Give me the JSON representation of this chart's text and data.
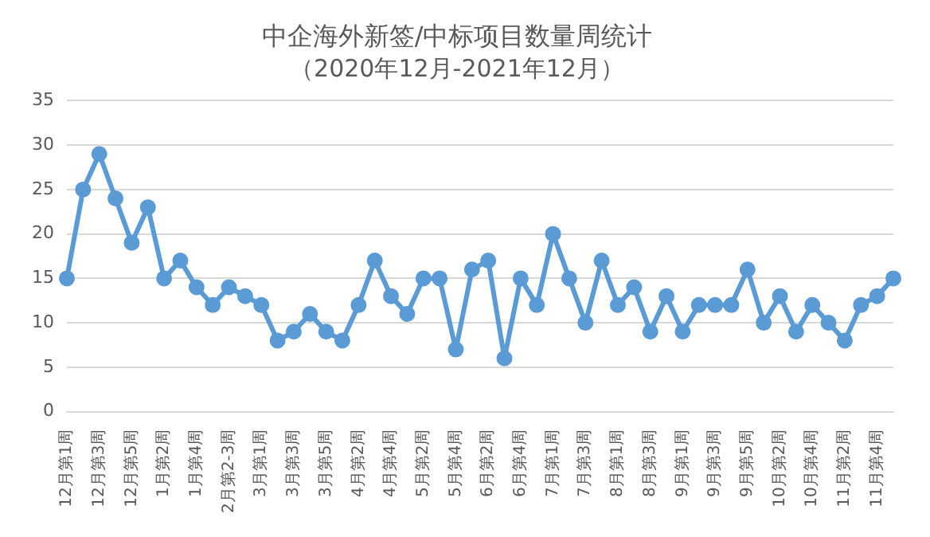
{
  "chart_data": {
    "type": "line",
    "title": "中企海外新签/中标项目数量周统计",
    "subtitle": "（2020年12月-2021年12月）",
    "categories": [
      "12月第1周",
      null,
      "12月第3周",
      null,
      "12月第5周",
      null,
      "1月第2周",
      null,
      "1月第4周",
      null,
      "2月第2-3周",
      null,
      "3月第1周",
      null,
      "3月第3周",
      null,
      "3月第5周",
      null,
      "4月第2周",
      null,
      "4月第4周",
      null,
      "5月第2周",
      null,
      "5月第4周",
      null,
      "6月第2周",
      null,
      "6月第4周",
      null,
      "7月第1周",
      null,
      "7月第3周",
      null,
      "8月第1周",
      null,
      "8月第3周",
      null,
      "9月第1周",
      null,
      "9月第3周",
      null,
      "9月第5周",
      null,
      "10月第2周",
      null,
      "10月第4周",
      null,
      "11月第2周",
      null,
      "11月第4周",
      null
    ],
    "series": [
      {
        "color": "#5b9bd5",
        "values": [
          15,
          25,
          29,
          24,
          19,
          23,
          15,
          17,
          14,
          12,
          14,
          13,
          12,
          8,
          9,
          11,
          9,
          8,
          12,
          17,
          13,
          11,
          15,
          15,
          7,
          16,
          17,
          6,
          15,
          12,
          20,
          15,
          10,
          17,
          12,
          14,
          9,
          13,
          9,
          12,
          12,
          12,
          16,
          10,
          13,
          9,
          12,
          10,
          8,
          12,
          13,
          15
        ]
      }
    ],
    "ylim": [
      0,
      35
    ],
    "yticks": [
      0,
      5,
      10,
      15,
      20,
      25,
      30,
      35
    ],
    "grid": "y",
    "legend": false,
    "marker": "circle",
    "line_style": "solid"
  }
}
